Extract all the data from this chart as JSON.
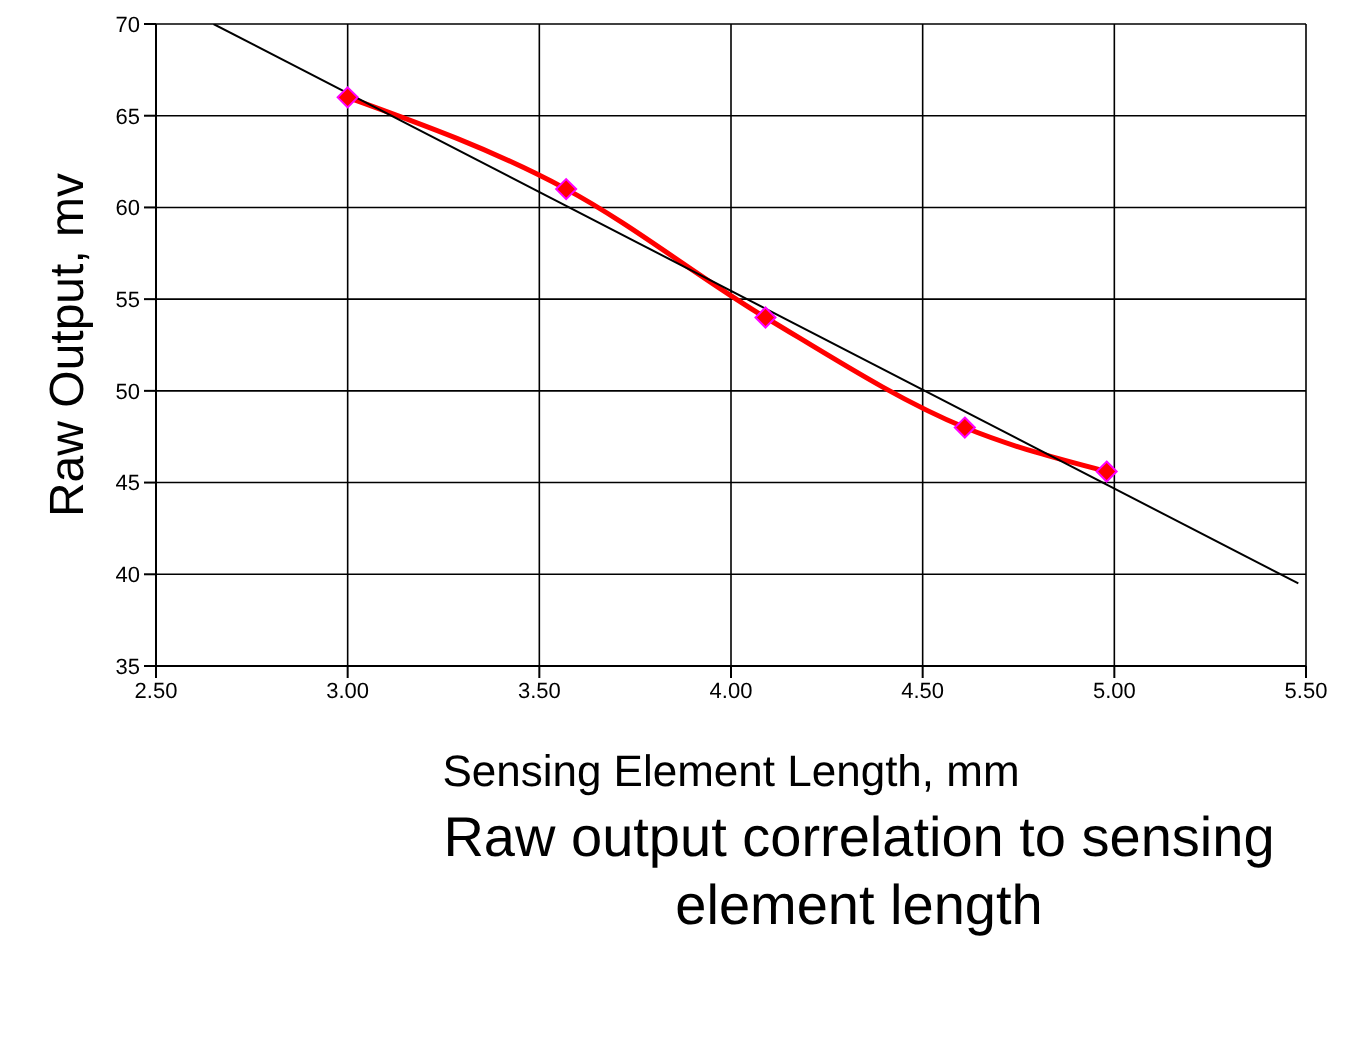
{
  "chart_data": {
    "type": "line",
    "title": "Raw output correlation to sensing element length",
    "xlabel": "Sensing Element Length, mm",
    "ylabel": "Raw Output, mv",
    "series": [
      {
        "color": "#ff0000",
        "x": [
          3.0,
          3.57,
          4.09,
          4.61,
          4.98
        ],
        "values": [
          66,
          61,
          54,
          48,
          45.6
        ],
        "marker": "diamond"
      },
      {
        "type": "line",
        "color": "#000000",
        "x": [
          2.65,
          5.48
        ],
        "values": [
          70,
          39.5
        ],
        "marker": "none"
      }
    ],
    "xlim": [
      2.5,
      5.5
    ],
    "xticks": [
      {
        "value": 2.5,
        "label": "2.50"
      },
      {
        "value": 3,
        "label": "3.00"
      },
      {
        "value": 3.5,
        "label": "3.50"
      },
      {
        "value": 4,
        "label": "4.00"
      },
      {
        "value": 4.5,
        "label": "4.50"
      },
      {
        "value": 5,
        "label": "5.00"
      },
      {
        "value": 5.5,
        "label": "5.50"
      }
    ],
    "ylim": [
      35,
      70
    ],
    "yticks": [
      35,
      40,
      45,
      50,
      55,
      60,
      65,
      70
    ],
    "grid": true,
    "legend": false
  }
}
